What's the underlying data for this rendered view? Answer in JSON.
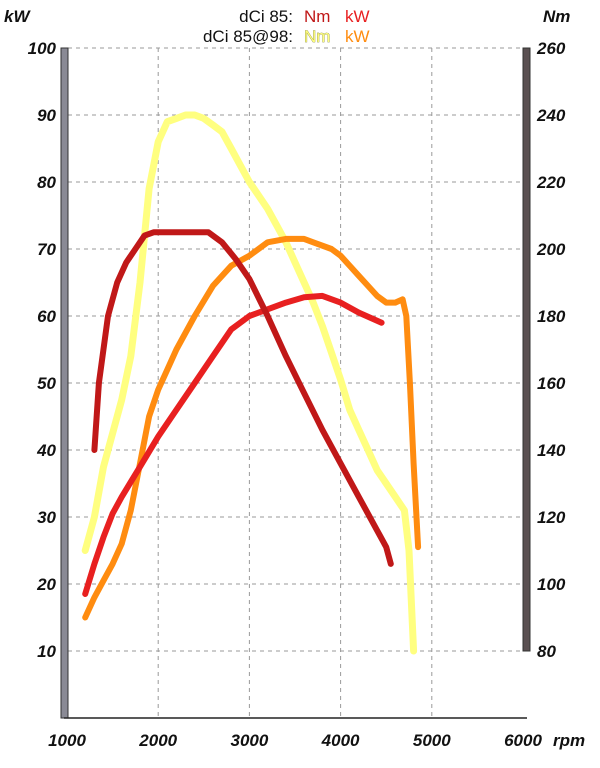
{
  "chart_data": {
    "type": "line",
    "x_unit": "rpm",
    "left_axis_label": "kW",
    "right_axis_label": "Nm",
    "xlim": [
      1000,
      6000
    ],
    "x_ticks": [
      1000,
      2000,
      3000,
      4000,
      5000,
      6000
    ],
    "left_ylim": [
      0,
      100
    ],
    "left_ticks": [
      10,
      20,
      30,
      40,
      50,
      60,
      70,
      80,
      90,
      100
    ],
    "right_ylim": [
      50,
      260
    ],
    "right_ticks": [
      80,
      100,
      120,
      140,
      160,
      180,
      200,
      220,
      240,
      260
    ],
    "grid": true,
    "legend": [
      {
        "engine": "dCi 85:",
        "items": [
          {
            "label": "Nm",
            "color": "#c01818"
          },
          {
            "label": "kW",
            "color": "#e82020"
          }
        ]
      },
      {
        "engine": "dCi 85@98:",
        "items": [
          {
            "label": "Nm",
            "color": "#ffff80"
          },
          {
            "label": "kW",
            "color": "#ff8c10"
          }
        ]
      }
    ],
    "series": [
      {
        "id": "dci85-nm",
        "axis": "right",
        "color": "#c01818",
        "x": [
          1300,
          1350,
          1450,
          1550,
          1650,
          1750,
          1850,
          1950,
          2050,
          2200,
          2400,
          2550,
          2700,
          2850,
          3000,
          3200,
          3400,
          3600,
          3800,
          4000,
          4200,
          4400,
          4500,
          4550
        ],
        "y": [
          140,
          160,
          180,
          190,
          196,
          200,
          204,
          205,
          205,
          205,
          205,
          205,
          202,
          197,
          191,
          180,
          168,
          157,
          146,
          136,
          126,
          116,
          111,
          106
        ]
      },
      {
        "id": "dci85-kw",
        "axis": "left",
        "color": "#e82020",
        "x": [
          1200,
          1300,
          1400,
          1500,
          1600,
          1800,
          2000,
          2200,
          2400,
          2600,
          2800,
          3000,
          3200,
          3400,
          3600,
          3800,
          4000,
          4200,
          4450
        ],
        "y": [
          18.5,
          23,
          27,
          30.5,
          33,
          37.5,
          42,
          46,
          50,
          54,
          58,
          60,
          61,
          62,
          62.8,
          63,
          62,
          60.5,
          59
        ]
      },
      {
        "id": "dci85at98-nm",
        "axis": "right",
        "color": "#ffff80",
        "x": [
          1200,
          1250,
          1300,
          1400,
          1500,
          1600,
          1700,
          1800,
          1900,
          2000,
          2100,
          2200,
          2300,
          2400,
          2500,
          2600,
          2700,
          2800,
          2900,
          3000,
          3100,
          3200,
          3300,
          3400,
          3500,
          3600,
          3700,
          3800,
          3900,
          4000,
          4100,
          4200,
          4300,
          4400,
          4500,
          4600,
          4700,
          4750,
          4800
        ],
        "y": [
          110,
          115,
          120,
          135,
          145,
          155,
          168,
          190,
          218,
          232,
          238,
          239,
          240,
          240,
          239,
          237,
          235,
          230,
          225,
          220,
          216,
          212,
          207,
          202,
          196,
          190,
          184,
          177,
          169,
          161,
          152,
          146,
          140,
          134,
          130,
          126,
          122,
          110,
          80
        ]
      },
      {
        "id": "dci85at98-kw",
        "axis": "left",
        "color": "#ff8c10",
        "x": [
          1200,
          1300,
          1400,
          1500,
          1600,
          1700,
          1800,
          1900,
          2000,
          2100,
          2200,
          2400,
          2600,
          2800,
          3000,
          3200,
          3400,
          3600,
          3700,
          3900,
          4000,
          4100,
          4200,
          4300,
          4400,
          4500,
          4600,
          4680,
          4720,
          4760,
          4800,
          4850
        ],
        "y": [
          15,
          18,
          20.5,
          23,
          26,
          31,
          38,
          45,
          49,
          52,
          55,
          60,
          64.5,
          67.5,
          69,
          71,
          71.5,
          71.5,
          71,
          70,
          69,
          67.5,
          66,
          64.5,
          63,
          62,
          62,
          62.5,
          60,
          50,
          38,
          25.5
        ]
      }
    ]
  }
}
